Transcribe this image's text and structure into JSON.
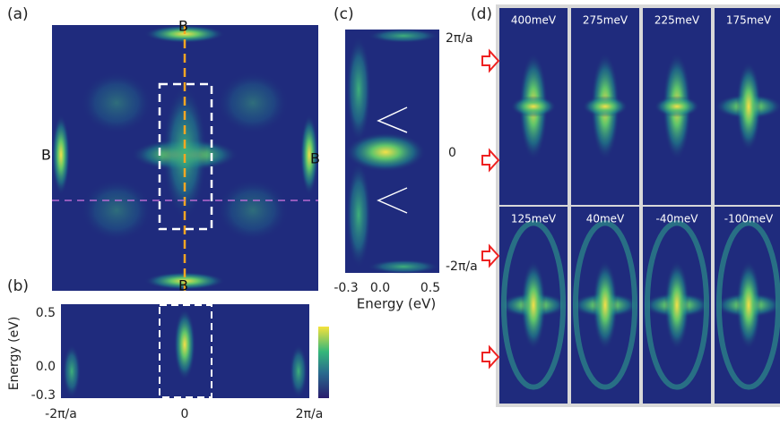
{
  "panels": {
    "a": {
      "label": "(a)",
      "markers": [
        "B",
        "B",
        "B",
        "B"
      ]
    },
    "b": {
      "label": "(b)",
      "y_axis_title": "Energy (eV)",
      "yticks": [
        "0.5",
        "0.0",
        "-0.3"
      ],
      "xticks": [
        "-2π/a",
        "0",
        "2π/a"
      ]
    },
    "c": {
      "label": "(c)",
      "yticks": [
        "2π/a",
        "0",
        "-2π/a"
      ],
      "xticks": [
        "-0.3",
        "0.0",
        "0.5"
      ],
      "x_axis_title": "Energy (eV)"
    },
    "d": {
      "label": "(d)",
      "maps": [
        "400meV",
        "275meV",
        "225meV",
        "175meV",
        "125meV",
        "40meV",
        "-40meV",
        "-100meV"
      ]
    }
  }
}
